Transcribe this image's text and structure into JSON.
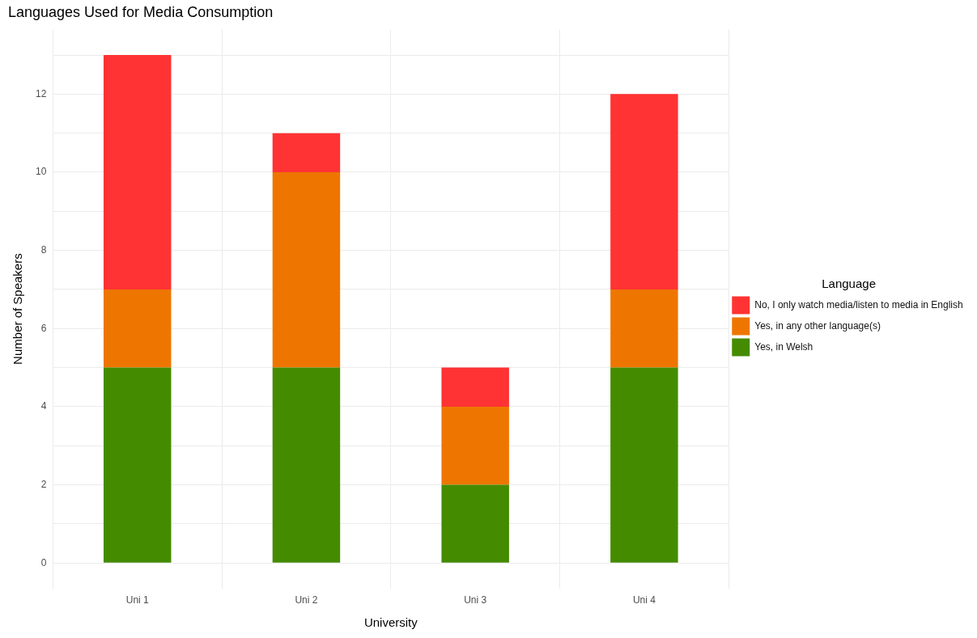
{
  "chart_data": {
    "type": "bar",
    "title": "Languages Used for Media Consumption",
    "xlabel": "University",
    "ylabel": "Number of Speakers",
    "legend_title": "Language",
    "categories": [
      "Uni 1",
      "Uni 2",
      "Uni 3",
      "Uni 4"
    ],
    "stacked": true,
    "series": [
      {
        "name": "Yes, in Welsh",
        "color": "#458b00",
        "values": [
          5,
          5,
          2,
          5
        ]
      },
      {
        "name": "Yes, in any other language(s)",
        "color": "#ee7600",
        "values": [
          2,
          5,
          2,
          2
        ]
      },
      {
        "name": "No, I only watch media/listen to media in English",
        "color": "#ff3333",
        "values": [
          6,
          1,
          1,
          5
        ]
      }
    ],
    "ylim": [
      -0.65,
      13.65
    ],
    "yticks": [
      0,
      {
        "value": 1,
        "label": null
      },
      2,
      {
        "value": 3,
        "label": null
      },
      4,
      {
        "value": 5,
        "label": null
      },
      6,
      {
        "value": 7,
        "label": null
      },
      8,
      {
        "value": 9,
        "label": null
      },
      10,
      {
        "value": 11,
        "label": null
      },
      12,
      {
        "value": 13,
        "label": null
      }
    ],
    "grid": true,
    "legend": "right"
  }
}
